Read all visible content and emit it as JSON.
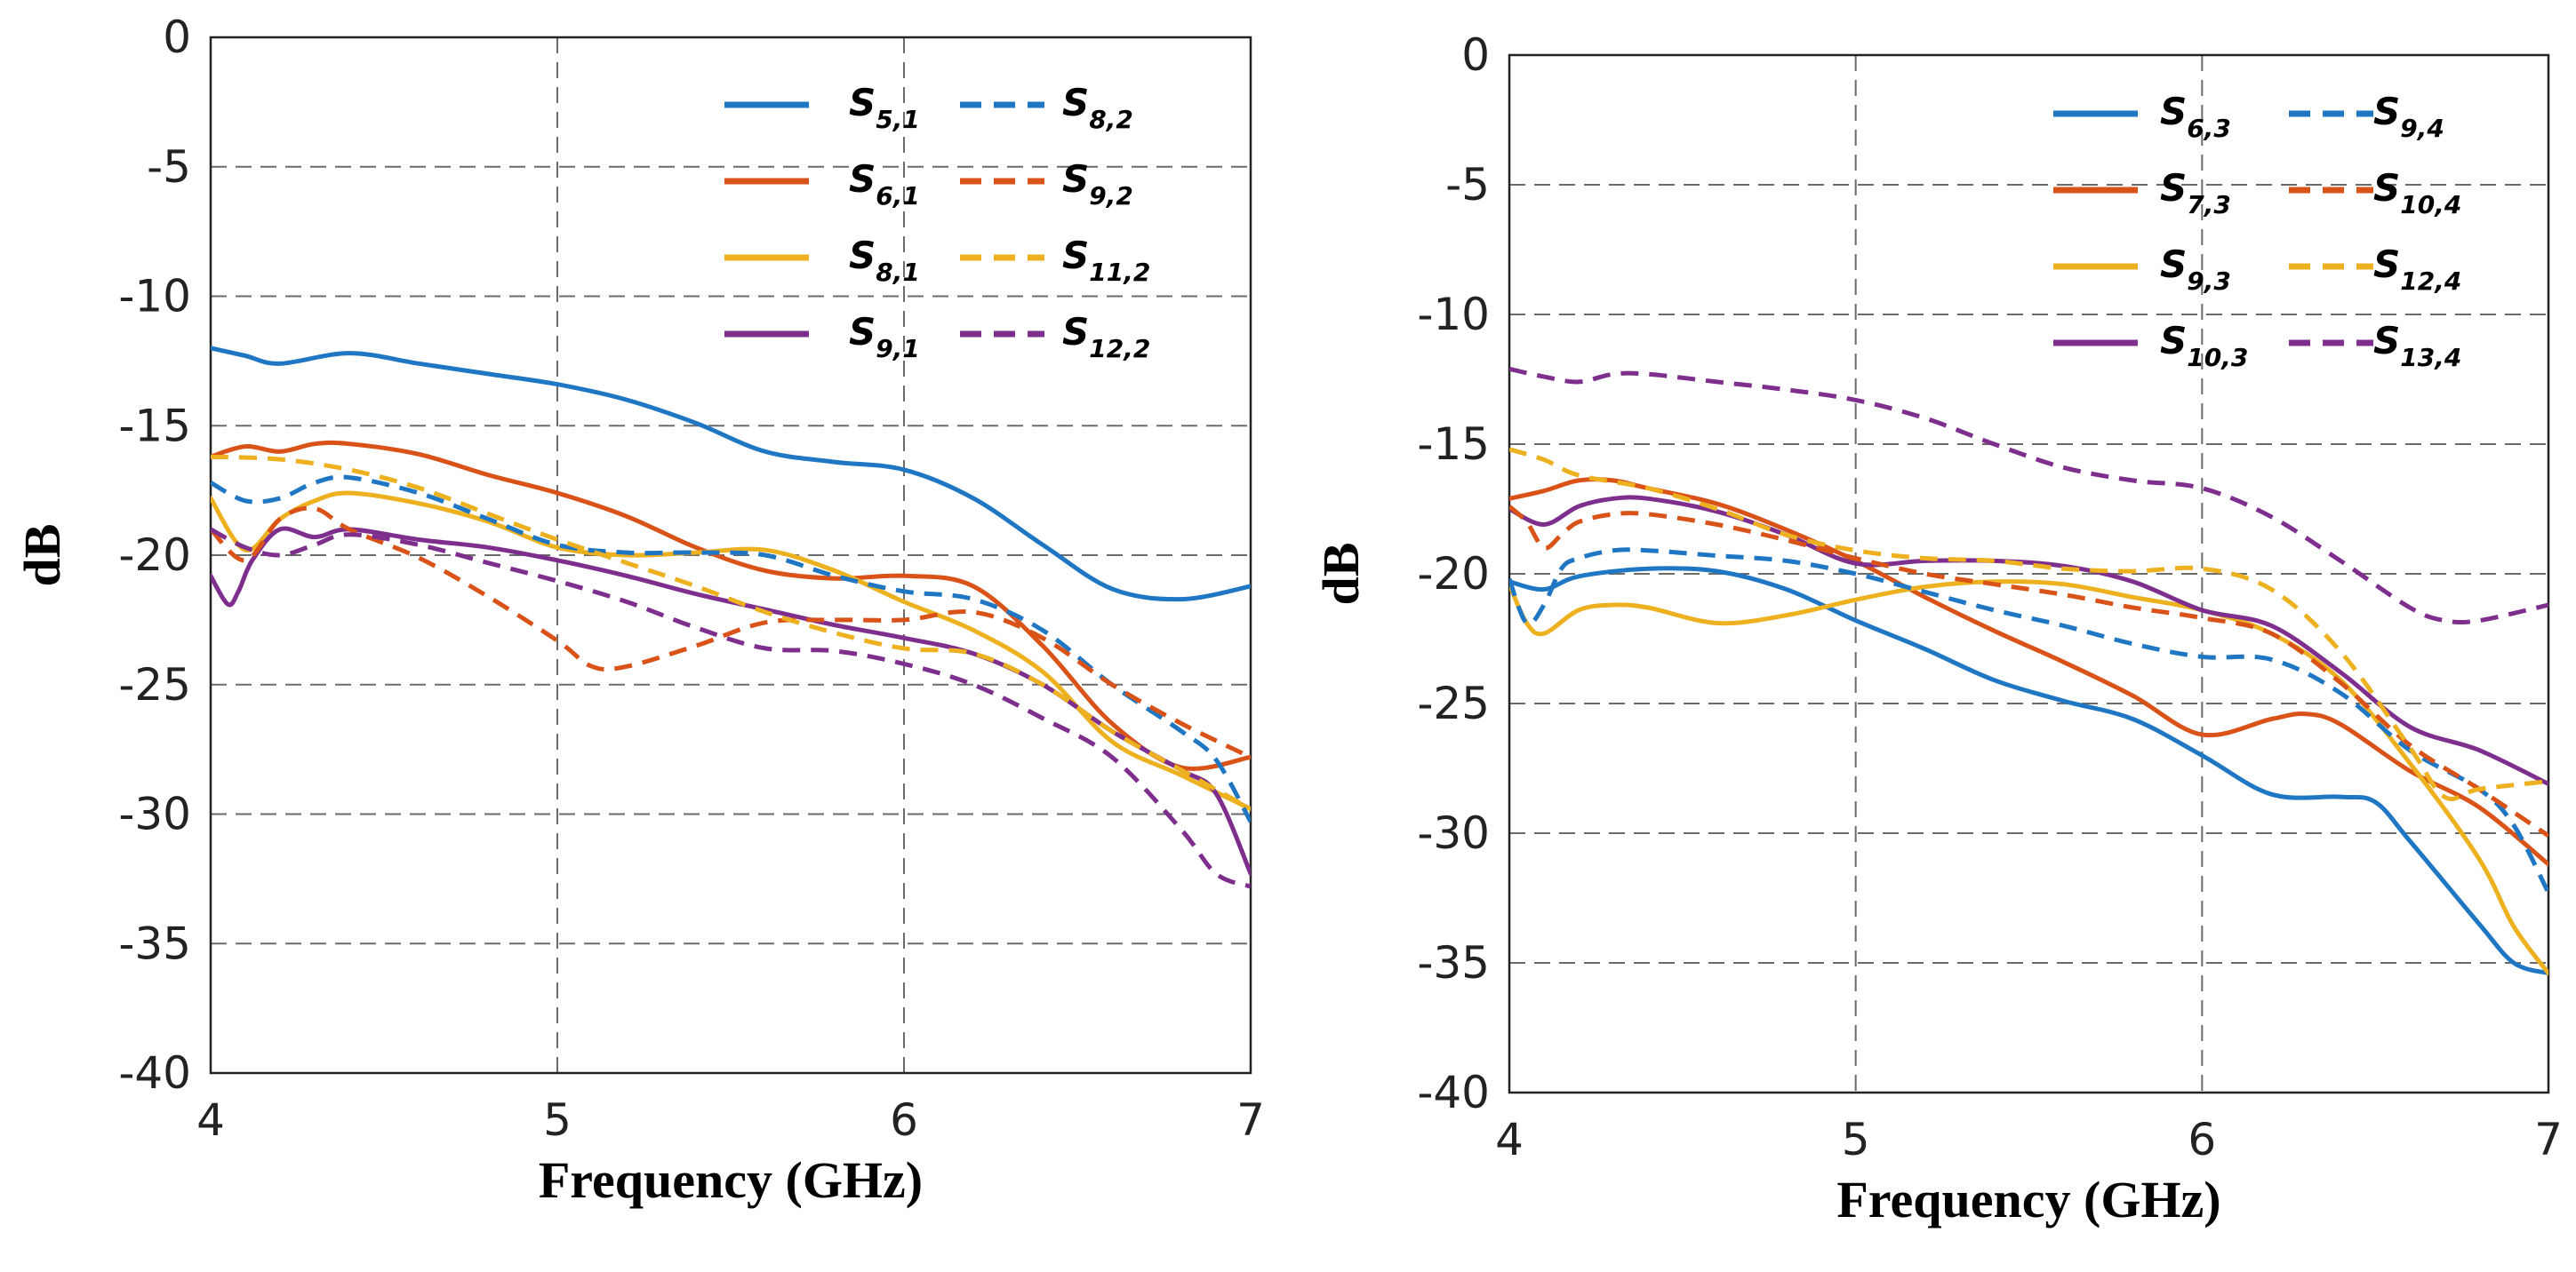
{
  "colors": {
    "blue": "#1f77c4",
    "orange": "#d95319",
    "yellow": "#edb120",
    "purple": "#7e2f8e"
  },
  "chart_data": [
    {
      "type": "line",
      "title": "",
      "xlabel": "Frequency (GHz)",
      "ylabel": "dB",
      "xlim": [
        4,
        7
      ],
      "ylim": [
        -40,
        0
      ],
      "grid": true,
      "legend_position": "top-right",
      "xticks": [
        "4",
        "5",
        "6",
        "7"
      ],
      "yticks": [
        "0",
        "-5",
        "-10",
        "-15",
        "-20",
        "-25",
        "-30",
        "-35",
        "-40"
      ],
      "series": [
        {
          "name": "S5,1",
          "label_main": "S",
          "label_sub": "5,1",
          "color": "blue",
          "dash": false,
          "x": [
            4,
            4.1,
            4.2,
            4.4,
            4.6,
            4.8,
            5.0,
            5.2,
            5.4,
            5.6,
            5.8,
            6.0,
            6.2,
            6.4,
            6.6,
            6.8,
            7.0
          ],
          "y": [
            -12.0,
            -12.3,
            -12.6,
            -12.2,
            -12.6,
            -13.0,
            -13.4,
            -14.0,
            -14.9,
            -16.0,
            -16.4,
            -16.7,
            -17.8,
            -19.6,
            -21.3,
            -21.7,
            -21.2
          ]
        },
        {
          "name": "S6,1",
          "label_main": "S",
          "label_sub": "6,1",
          "color": "orange",
          "dash": false,
          "x": [
            4,
            4.1,
            4.2,
            4.3,
            4.4,
            4.6,
            4.8,
            5.0,
            5.2,
            5.4,
            5.6,
            5.8,
            6.0,
            6.2,
            6.4,
            6.6,
            6.8,
            7.0
          ],
          "y": [
            -16.2,
            -15.8,
            -16.0,
            -15.7,
            -15.7,
            -16.1,
            -16.9,
            -17.6,
            -18.5,
            -19.7,
            -20.6,
            -20.9,
            -20.8,
            -21.2,
            -23.5,
            -26.5,
            -28.2,
            -27.8
          ]
        },
        {
          "name": "S8,1",
          "label_main": "S",
          "label_sub": "8,1",
          "color": "yellow",
          "dash": false,
          "x": [
            4,
            4.1,
            4.2,
            4.3,
            4.4,
            4.6,
            4.8,
            5.0,
            5.2,
            5.4,
            5.6,
            5.8,
            6.0,
            6.2,
            6.4,
            6.6,
            6.8,
            7.0
          ],
          "y": [
            -17.8,
            -19.8,
            -18.6,
            -17.9,
            -17.6,
            -18.0,
            -18.7,
            -19.7,
            -20.0,
            -19.9,
            -19.8,
            -20.6,
            -21.8,
            -22.9,
            -24.5,
            -27.2,
            -28.5,
            -29.8
          ]
        },
        {
          "name": "S9,1",
          "label_main": "S",
          "label_sub": "9,1",
          "color": "purple",
          "dash": false,
          "x": [
            4,
            4.05,
            4.08,
            4.12,
            4.2,
            4.3,
            4.4,
            4.6,
            4.8,
            5.0,
            5.2,
            5.4,
            5.6,
            5.8,
            6.0,
            6.2,
            6.4,
            6.6,
            6.8,
            6.9,
            7.0
          ],
          "y": [
            -20.8,
            -21.9,
            -21.4,
            -20.2,
            -19.0,
            -19.3,
            -19.0,
            -19.4,
            -19.7,
            -20.2,
            -20.8,
            -21.5,
            -22.1,
            -22.7,
            -23.2,
            -23.8,
            -25.0,
            -26.8,
            -28.3,
            -29.2,
            -32.3
          ]
        },
        {
          "name": "S8,2",
          "label_main": "S",
          "label_sub": "8,2",
          "color": "blue",
          "dash": true,
          "x": [
            4,
            4.1,
            4.2,
            4.3,
            4.4,
            4.6,
            4.8,
            5.0,
            5.2,
            5.4,
            5.6,
            5.8,
            6.0,
            6.2,
            6.4,
            6.6,
            6.8,
            6.9,
            7.0
          ],
          "y": [
            -17.2,
            -17.9,
            -17.8,
            -17.2,
            -17.0,
            -17.6,
            -18.6,
            -19.6,
            -19.9,
            -19.9,
            -20.0,
            -20.8,
            -21.4,
            -21.7,
            -22.9,
            -25.0,
            -26.8,
            -27.9,
            -30.3
          ]
        },
        {
          "name": "S9,2",
          "label_main": "S",
          "label_sub": "9,2",
          "color": "orange",
          "dash": true,
          "x": [
            4,
            4.1,
            4.2,
            4.3,
            4.4,
            4.6,
            4.8,
            5.0,
            5.1,
            5.2,
            5.4,
            5.6,
            5.8,
            6.0,
            6.2,
            6.4,
            6.6,
            6.8,
            7.0
          ],
          "y": [
            -19.0,
            -20.2,
            -18.6,
            -18.2,
            -19.0,
            -20.1,
            -21.6,
            -23.3,
            -24.3,
            -24.3,
            -23.5,
            -22.6,
            -22.5,
            -22.5,
            -22.2,
            -23.2,
            -25.0,
            -26.5,
            -27.8
          ]
        },
        {
          "name": "S11,2",
          "label_main": "S",
          "label_sub": "11,2",
          "color": "yellow",
          "dash": true,
          "x": [
            4,
            4.2,
            4.4,
            4.6,
            4.8,
            5.0,
            5.2,
            5.4,
            5.6,
            5.8,
            6.0,
            6.2,
            6.4,
            6.6,
            6.8,
            7.0
          ],
          "y": [
            -16.2,
            -16.3,
            -16.7,
            -17.4,
            -18.4,
            -19.4,
            -20.3,
            -21.2,
            -22.2,
            -23.0,
            -23.6,
            -23.8,
            -25.0,
            -26.8,
            -28.3,
            -29.8
          ]
        },
        {
          "name": "S12,2",
          "label_main": "S",
          "label_sub": "12,2",
          "color": "purple",
          "dash": true,
          "x": [
            4,
            4.1,
            4.2,
            4.3,
            4.4,
            4.6,
            4.8,
            5.0,
            5.2,
            5.4,
            5.6,
            5.8,
            6.0,
            6.2,
            6.4,
            6.6,
            6.8,
            6.9,
            7.0
          ],
          "y": [
            -19.0,
            -19.7,
            -20.0,
            -19.6,
            -19.2,
            -19.6,
            -20.3,
            -21.0,
            -21.8,
            -22.8,
            -23.6,
            -23.7,
            -24.2,
            -25.0,
            -26.3,
            -27.8,
            -30.6,
            -32.3,
            -32.8
          ]
        }
      ]
    },
    {
      "type": "line",
      "title": "",
      "xlabel": "Frequency (GHz)",
      "ylabel": "dB",
      "xlim": [
        4,
        7
      ],
      "ylim": [
        -40,
        0
      ],
      "grid": true,
      "legend_position": "top-right",
      "xticks": [
        "4",
        "5",
        "6",
        "7"
      ],
      "yticks": [
        "0",
        "-5",
        "-10",
        "-15",
        "-20",
        "-25",
        "-30",
        "-35",
        "-40"
      ],
      "series": [
        {
          "name": "S6,3",
          "label_main": "S",
          "label_sub": "6,3",
          "color": "blue",
          "dash": false,
          "x": [
            4,
            4.1,
            4.2,
            4.4,
            4.6,
            4.8,
            5.0,
            5.2,
            5.4,
            5.6,
            5.8,
            6.0,
            6.2,
            6.4,
            6.5,
            6.6,
            6.8,
            6.9,
            7.0
          ],
          "y": [
            -20.3,
            -20.6,
            -20.1,
            -19.8,
            -19.9,
            -20.6,
            -21.8,
            -22.9,
            -24.1,
            -24.9,
            -25.6,
            -27.0,
            -28.5,
            -28.6,
            -28.8,
            -30.3,
            -33.5,
            -35.0,
            -35.4
          ]
        },
        {
          "name": "S7,3",
          "label_main": "S",
          "label_sub": "7,3",
          "color": "orange",
          "dash": false,
          "x": [
            4,
            4.1,
            4.2,
            4.3,
            4.4,
            4.6,
            4.8,
            5.0,
            5.2,
            5.4,
            5.6,
            5.8,
            6.0,
            6.2,
            6.3,
            6.4,
            6.6,
            6.8,
            7.0
          ],
          "y": [
            -17.1,
            -16.8,
            -16.4,
            -16.4,
            -16.7,
            -17.3,
            -18.3,
            -19.5,
            -20.9,
            -22.2,
            -23.4,
            -24.7,
            -26.2,
            -25.6,
            -25.4,
            -25.8,
            -27.6,
            -29.0,
            -31.2
          ]
        },
        {
          "name": "S9,3",
          "label_main": "S",
          "label_sub": "9,3",
          "color": "yellow",
          "dash": false,
          "x": [
            4,
            4.05,
            4.1,
            4.2,
            4.3,
            4.4,
            4.6,
            4.8,
            5.0,
            5.2,
            5.4,
            5.6,
            5.8,
            6.0,
            6.2,
            6.4,
            6.6,
            6.8,
            6.9,
            7.0
          ],
          "y": [
            -20.4,
            -21.9,
            -22.3,
            -21.4,
            -21.2,
            -21.3,
            -21.9,
            -21.6,
            -21.0,
            -20.5,
            -20.3,
            -20.4,
            -20.9,
            -21.4,
            -22.3,
            -24.1,
            -27.3,
            -31.0,
            -33.6,
            -35.4
          ]
        },
        {
          "name": "S10,3",
          "label_main": "S",
          "label_sub": "10,3",
          "color": "purple",
          "dash": false,
          "x": [
            4,
            4.1,
            4.2,
            4.3,
            4.4,
            4.6,
            4.8,
            5.0,
            5.2,
            5.4,
            5.6,
            5.8,
            6.0,
            6.2,
            6.4,
            6.6,
            6.8,
            7.0
          ],
          "y": [
            -17.5,
            -18.1,
            -17.4,
            -17.1,
            -17.1,
            -17.6,
            -18.5,
            -19.6,
            -19.5,
            -19.5,
            -19.7,
            -20.3,
            -21.4,
            -22.0,
            -23.8,
            -25.9,
            -26.8,
            -28.1
          ]
        },
        {
          "name": "S9,4",
          "label_main": "S",
          "label_sub": "9,4",
          "color": "blue",
          "dash": true,
          "x": [
            4,
            4.05,
            4.1,
            4.15,
            4.2,
            4.3,
            4.4,
            4.6,
            4.8,
            5.0,
            5.2,
            5.4,
            5.6,
            5.8,
            6.0,
            6.2,
            6.4,
            6.6,
            6.8,
            6.9,
            7.0
          ],
          "y": [
            -20.2,
            -21.9,
            -21.2,
            -19.8,
            -19.4,
            -19.1,
            -19.1,
            -19.3,
            -19.5,
            -20.0,
            -20.7,
            -21.4,
            -22.0,
            -22.7,
            -23.2,
            -23.3,
            -24.6,
            -26.8,
            -28.3,
            -29.7,
            -32.3
          ]
        },
        {
          "name": "S10,4",
          "label_main": "S",
          "label_sub": "10,4",
          "color": "orange",
          "dash": true,
          "x": [
            4,
            4.05,
            4.1,
            4.15,
            4.2,
            4.3,
            4.4,
            4.6,
            4.8,
            5.0,
            5.2,
            5.4,
            5.6,
            5.8,
            6.0,
            6.2,
            6.4,
            6.6,
            6.8,
            7.0
          ],
          "y": [
            -17.4,
            -18.0,
            -19.0,
            -18.5,
            -18.0,
            -17.7,
            -17.7,
            -18.1,
            -18.7,
            -19.4,
            -20.0,
            -20.4,
            -20.8,
            -21.3,
            -21.7,
            -22.3,
            -24.2,
            -26.6,
            -28.3,
            -30.1
          ]
        },
        {
          "name": "S12,4",
          "label_main": "S",
          "label_sub": "12,4",
          "color": "yellow",
          "dash": true,
          "x": [
            4,
            4.1,
            4.2,
            4.4,
            4.6,
            4.8,
            5.0,
            5.2,
            5.4,
            5.6,
            5.8,
            6.0,
            6.2,
            6.4,
            6.6,
            6.7,
            6.8,
            7.0
          ],
          "y": [
            -15.2,
            -15.6,
            -16.2,
            -16.7,
            -17.5,
            -18.5,
            -19.1,
            -19.4,
            -19.5,
            -19.8,
            -19.9,
            -19.8,
            -20.6,
            -23.0,
            -26.7,
            -28.6,
            -28.3,
            -28.0
          ]
        },
        {
          "name": "S13,4",
          "label_main": "S",
          "label_sub": "13,4",
          "color": "purple",
          "dash": true,
          "x": [
            4,
            4.1,
            4.2,
            4.3,
            4.4,
            4.6,
            4.8,
            5.0,
            5.2,
            5.4,
            5.6,
            5.8,
            6.0,
            6.2,
            6.4,
            6.6,
            6.7,
            6.8,
            7.0
          ],
          "y": [
            -12.1,
            -12.4,
            -12.6,
            -12.3,
            -12.3,
            -12.6,
            -12.9,
            -13.3,
            -14.0,
            -15.0,
            -15.9,
            -16.4,
            -16.7,
            -17.8,
            -19.5,
            -21.3,
            -21.8,
            -21.8,
            -21.2
          ]
        }
      ]
    }
  ]
}
